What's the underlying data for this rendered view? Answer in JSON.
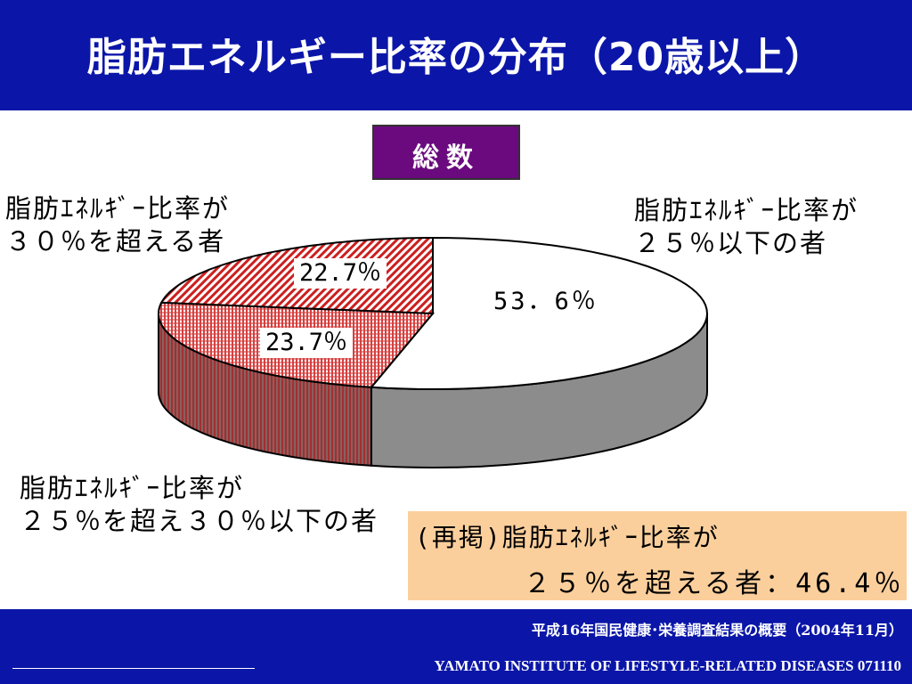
{
  "title": "脂肪エネルギー比率の分布（20歳以上）",
  "subtitle": "総数",
  "chart_data": {
    "type": "pie",
    "categories": [
      "脂肪エネルギー比率が25％以下の者",
      "脂肪エネルギー比率が25％を超え30％以下の者",
      "脂肪エネルギー比率が30％を超える者"
    ],
    "values": [
      53.6,
      23.7,
      22.7
    ],
    "data_labels": [
      "53．6％",
      "23.7％",
      "22.7％"
    ],
    "colors": [
      "#ffffff",
      "#d63030",
      "#c81818"
    ],
    "side_color": "#8c8c8c",
    "legend_placement": "labels beside slices",
    "three_d": true
  },
  "labels": {
    "over30_line1": "脂肪ｴﾈﾙｷﾞｰ比率が",
    "over30_line2": "３０％を超える者",
    "under25_line1": "脂肪ｴﾈﾙｷﾞｰ比率が",
    "under25_line2": "２５％以下の者",
    "mid_line1": "脂肪ｴﾈﾙｷﾞｰ比率が",
    "mid_line2": "２５％を超え３０％以下の者"
  },
  "note": {
    "line1": "(再掲)脂肪ｴﾈﾙｷﾞｰ比率が",
    "line2": "２５％を超える者：46.4％"
  },
  "footer": {
    "source": "平成16年国民健康･栄養調査結果の概要（2004年11月）",
    "org": "YAMATO INSTITUTE OF LIFESTYLE-RELATED DISEASES  071110"
  }
}
